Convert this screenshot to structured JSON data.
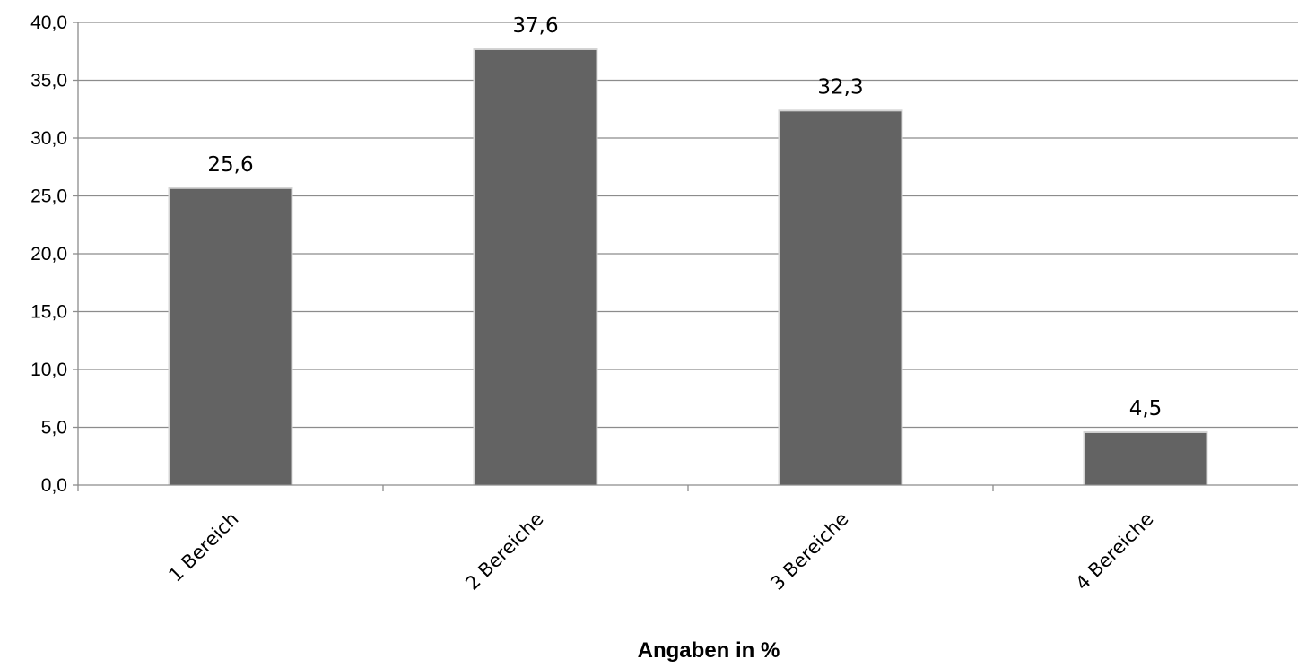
{
  "chart_data": {
    "type": "bar",
    "categories": [
      "1 Bereich",
      "2 Bereiche",
      "3 Bereiche",
      "4 Bereiche"
    ],
    "values": [
      25.6,
      37.6,
      32.3,
      4.5
    ],
    "value_labels": [
      "25,6",
      "37,6",
      "32,3",
      "4,5"
    ],
    "xlabel": "Angaben in %",
    "ylim": [
      0,
      40
    ],
    "yticks": [
      0,
      5,
      10,
      15,
      20,
      25,
      30,
      35,
      40
    ],
    "ytick_labels": [
      "0,0",
      "5,0",
      "10,0",
      "15,0",
      "20,0",
      "25,0",
      "30,0",
      "35,0",
      "40,0"
    ],
    "grid": true,
    "legend": "none",
    "colors": {
      "bar": "#636363",
      "bar_shadow": "#d4d4d4",
      "grid": "#8c8c8c",
      "axis": "#8c8c8c"
    }
  }
}
